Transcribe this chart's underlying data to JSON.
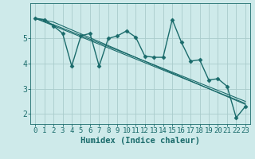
{
  "bg_color": "#ceeaea",
  "grid_color": "#aacccc",
  "line_color": "#1a6b6b",
  "xlabel": "Humidex (Indice chaleur)",
  "xlabel_fontsize": 7.5,
  "tick_fontsize": 6.5,
  "ylim": [
    1.6,
    6.4
  ],
  "xlim": [
    -0.5,
    23.5
  ],
  "yticks": [
    2,
    3,
    4,
    5
  ],
  "xticks": [
    0,
    1,
    2,
    3,
    4,
    5,
    6,
    7,
    8,
    9,
    10,
    11,
    12,
    13,
    14,
    15,
    16,
    17,
    18,
    19,
    20,
    21,
    22,
    23
  ],
  "series_main": {
    "x": [
      0,
      1,
      2,
      3,
      4,
      5,
      6,
      7,
      8,
      9,
      10,
      11,
      12,
      13,
      14,
      15,
      16,
      17,
      18,
      19,
      20,
      21,
      22,
      23
    ],
    "y": [
      5.8,
      5.75,
      5.5,
      5.2,
      3.9,
      5.1,
      5.2,
      3.9,
      5.0,
      5.1,
      5.3,
      5.05,
      4.3,
      4.25,
      4.25,
      5.75,
      4.85,
      4.1,
      4.15,
      3.35,
      3.4,
      3.1,
      1.85,
      2.3
    ],
    "marker": "D",
    "markersize": 2.5,
    "linewidth": 1.0
  },
  "trend_lines": [
    {
      "x": [
        0,
        2,
        23
      ],
      "y": [
        5.8,
        5.65,
        2.38
      ]
    },
    {
      "x": [
        0,
        2,
        23
      ],
      "y": [
        5.8,
        5.55,
        2.5
      ]
    },
    {
      "x": [
        0,
        23
      ],
      "y": [
        5.8,
        2.42
      ]
    }
  ]
}
